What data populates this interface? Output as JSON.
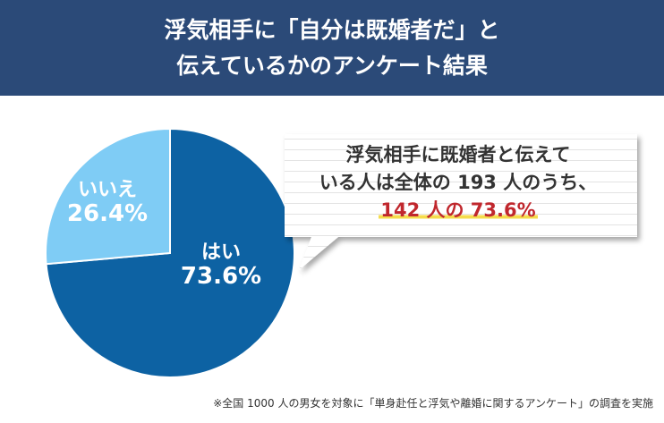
{
  "header": {
    "title_line1": "浮気相手に「自分は既婚者だ」と",
    "title_line2": "伝えているかのアンケート結果"
  },
  "chart_data": {
    "type": "pie",
    "slices": [
      {
        "label": "はい",
        "value": 73.6,
        "value_text": "73.6%",
        "color": "#0d62a3"
      },
      {
        "label": "いいえ",
        "value": 26.4,
        "value_text": "26.4%",
        "color": "#7fccf5"
      }
    ]
  },
  "callout": {
    "line1": "浮気相手に既婚者と伝えて",
    "line2": "いる人は全体の 193 人のうち、",
    "line3": "142 人の 73.6%"
  },
  "footnote": "※全国 1000 人の男女を対象に「単身赴任と浮気や離婚に関するアンケート」の調査を実施"
}
